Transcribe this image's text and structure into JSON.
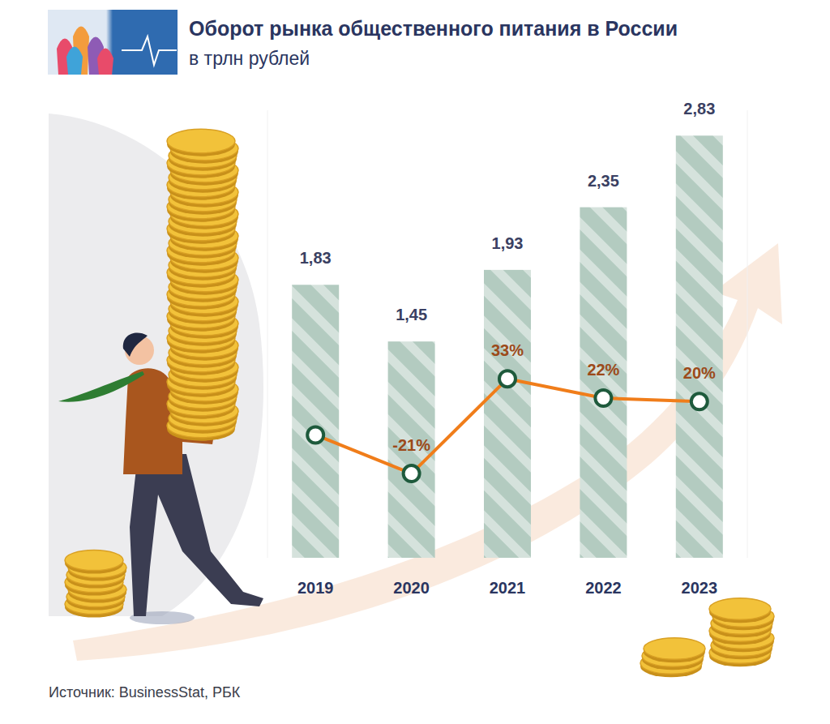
{
  "chart_data": {
    "type": "bar",
    "title": "Оборот рынка общественного питания в России",
    "subtitle": "в трлн рублей",
    "source": "Источник: BusinessStat, РБК",
    "categories": [
      "2019",
      "2020",
      "2021",
      "2022",
      "2023"
    ],
    "ylim": [
      0,
      3
    ],
    "yticks": [],
    "y2lim": [
      -69,
      186
    ],
    "y2ticks": [],
    "tick_labels": "x",
    "grid": false,
    "data_labels": true,
    "series": [
      {
        "type": "bar",
        "color": "#b3cbc0",
        "values": [
          1.83,
          1.45,
          1.93,
          2.35,
          2.83
        ],
        "value_labels": [
          "1,83",
          "1,45",
          "1,93",
          "2,35",
          "2,83"
        ]
      },
      {
        "type": "line",
        "axis": "y2",
        "color": "#f07d1a",
        "marker": "circle",
        "line_style": "solid",
        "values": [
          1,
          -21,
          33,
          22,
          20
        ],
        "value_labels": [
          null,
          "-21%",
          "33%",
          "22%",
          "20%"
        ]
      }
    ]
  }
}
